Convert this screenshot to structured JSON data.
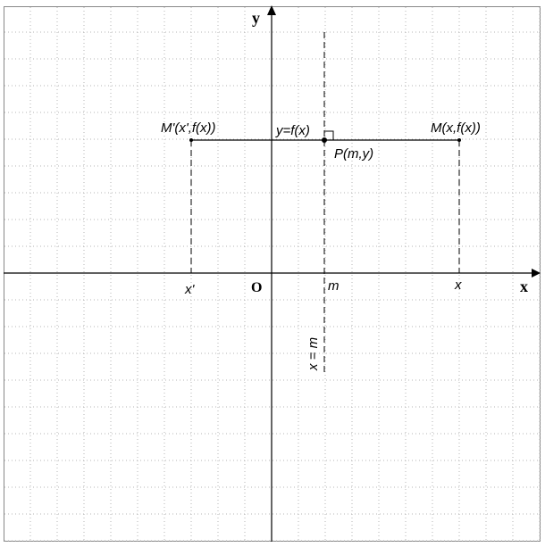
{
  "figure": {
    "axes": {
      "x_label": "x",
      "y_label": "y",
      "origin_label": "O"
    },
    "points": {
      "m_prime_label": "M'(x',f(x))",
      "m_label": "M(x,f(x))",
      "p_label": "P(m,y)"
    },
    "lines": {
      "horizontal_label": "y=f(x)",
      "symmetry_label": "x = m"
    },
    "ticks": {
      "x_prime": "x'",
      "m": "m",
      "x": "x"
    }
  }
}
